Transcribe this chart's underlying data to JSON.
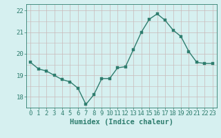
{
  "x": [
    0,
    1,
    2,
    3,
    4,
    5,
    6,
    7,
    8,
    9,
    10,
    11,
    12,
    13,
    14,
    15,
    16,
    17,
    18,
    19,
    20,
    21,
    22,
    23
  ],
  "y": [
    19.6,
    19.3,
    19.2,
    19.0,
    18.8,
    18.7,
    18.4,
    17.65,
    18.1,
    18.85,
    18.85,
    19.35,
    19.4,
    20.2,
    21.0,
    21.6,
    21.85,
    21.55,
    21.1,
    20.8,
    20.1,
    19.6,
    19.55,
    19.55
  ],
  "line_color": "#2e7d6e",
  "marker_color": "#2e7d6e",
  "bg_color": "#d6f0f0",
  "grid_color_v": "#c9b8b8",
  "grid_color_h": "#c9b8b8",
  "xlabel": "Humidex (Indice chaleur)",
  "ylim": [
    17.5,
    22.3
  ],
  "xlim": [
    -0.5,
    23.5
  ],
  "yticks": [
    18,
    19,
    20,
    21,
    22
  ],
  "xticks": [
    0,
    1,
    2,
    3,
    4,
    5,
    6,
    7,
    8,
    9,
    10,
    11,
    12,
    13,
    14,
    15,
    16,
    17,
    18,
    19,
    20,
    21,
    22,
    23
  ],
  "text_color": "#2e7d6e",
  "xlabel_fontsize": 7.5,
  "tick_fontsize": 6.5,
  "line_width": 1.0,
  "marker_size": 2.5
}
